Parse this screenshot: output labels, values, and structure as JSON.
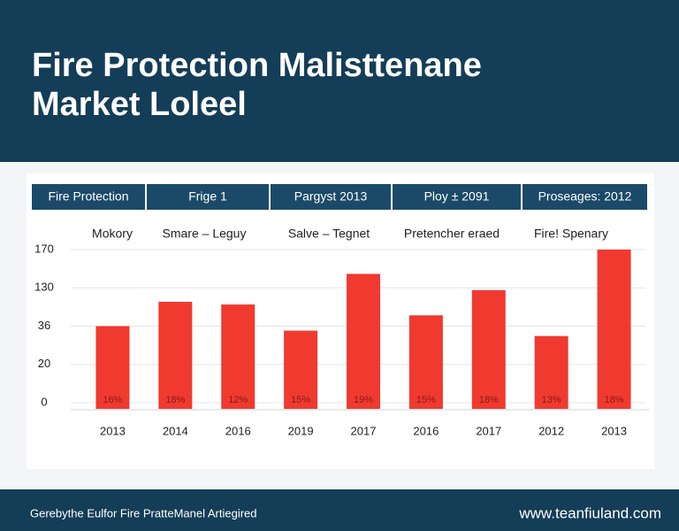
{
  "header": {
    "title_lines": [
      "Fire Protection Malisttenane",
      "Market Loleel"
    ]
  },
  "tabs": [
    "Fire Protection",
    "Frige 1",
    "Pargyst 2013",
    "Ploy ± 2091",
    "Proseages: 2012"
  ],
  "subheadings": [
    "Mokory",
    "Smare  –  Leguy",
    "Salve  –  Tegnet",
    "Pretencher eraed",
    "Fire! Spenary"
  ],
  "chart_data": {
    "type": "bar",
    "categories": [
      "2013",
      "2014",
      "2016",
      "2019",
      "2017",
      "2016",
      "2017",
      "2012",
      "2013"
    ],
    "values": [
      85,
      112,
      109,
      80,
      143,
      97,
      125,
      74,
      170
    ],
    "bar_labels": [
      "16%",
      "18%",
      "12%",
      "15%",
      "19%",
      "15%",
      "18%",
      "13%",
      "18%"
    ],
    "color": "#f03a30",
    "ylim": [
      0,
      170
    ],
    "yticks": [
      0,
      {
        "value": 42.5,
        "label": "20"
      },
      {
        "value": 85,
        "label": "36"
      },
      {
        "value": 127.5,
        "label": "130"
      },
      170
    ],
    "grid": true
  },
  "footer": {
    "left": "Gerebythe Eulfor Fire PratteManel Artiegired",
    "right": "www.teanfiuland.com"
  }
}
